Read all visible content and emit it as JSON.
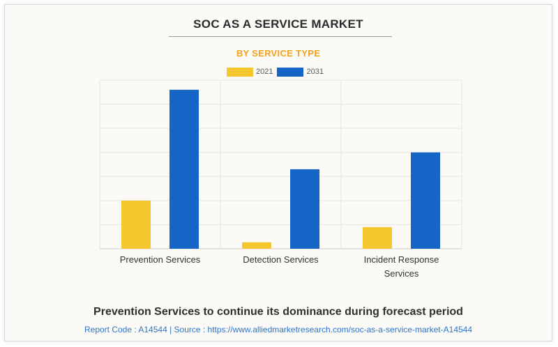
{
  "header": {
    "title": "SOC AS A SERVICE MARKET",
    "subtitle": "BY SERVICE TYPE"
  },
  "footer": {
    "headline": "Prevention Services to continue its dominance during forecast period",
    "source": "Report Code : A14544  |  Source : https://www.alliedmarketresearch.com/soc-as-a-service-market-A14544"
  },
  "colors": {
    "series_2021": "#f5c72e",
    "series_2031": "#1565c6",
    "grid": "#e4e4e4",
    "subtitle": "#f5a21b"
  },
  "chart_data": {
    "type": "bar",
    "title": "SOC AS A SERVICE MARKET",
    "subtitle": "BY SERVICE TYPE",
    "categories": [
      "Prevention Services",
      "Detection Services",
      "Incident Response Services"
    ],
    "category_label_lines": [
      [
        "Prevention Services"
      ],
      [
        "Detection Services"
      ],
      [
        "Incident Response",
        "Services"
      ]
    ],
    "series": [
      {
        "name": "2021",
        "values": [
          2.0,
          0.27,
          0.9
        ]
      },
      {
        "name": "2031",
        "values": [
          6.6,
          3.3,
          4.0
        ]
      }
    ],
    "ylim": [
      0,
      7
    ],
    "ygrid_steps": 7,
    "xlabel": "",
    "ylabel": "",
    "grid": true,
    "legend": "top-center"
  }
}
